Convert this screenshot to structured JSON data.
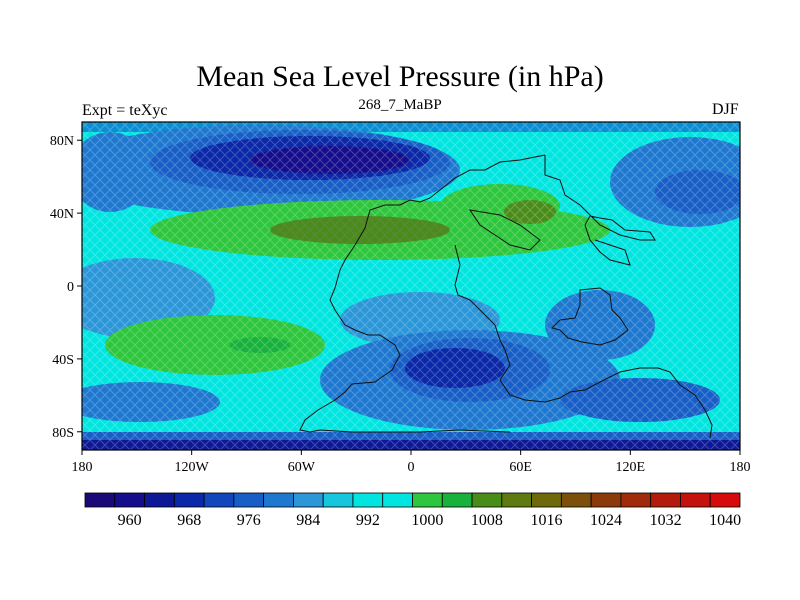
{
  "title": "Mean Sea Level Pressure (in hPa)",
  "subtitle": "268_7_MaBP",
  "left_label": "Expt = teXyc",
  "right_label": "DJF",
  "map": {
    "type": "filled-contour",
    "projection": "cylindrical-equidistant",
    "lon_range": [
      -180,
      180
    ],
    "lat_range": [
      -90,
      90
    ],
    "lon_ticks": [
      {
        "value": -180,
        "label": "180"
      },
      {
        "value": -120,
        "label": "120W"
      },
      {
        "value": -60,
        "label": "60W"
      },
      {
        "value": 0,
        "label": "0"
      },
      {
        "value": 60,
        "label": "60E"
      },
      {
        "value": 120,
        "label": "120E"
      },
      {
        "value": 180,
        "label": "180"
      }
    ],
    "lat_ticks": [
      {
        "value": 80,
        "label": "80N"
      },
      {
        "value": 40,
        "label": "40N"
      },
      {
        "value": 0,
        "label": "0"
      },
      {
        "value": -40,
        "label": "40S"
      },
      {
        "value": -80,
        "label": "80S"
      }
    ],
    "background_color": "#00e5e0"
  },
  "colorbar": {
    "colors": [
      "#1a0a78",
      "#160d8c",
      "#0d1896",
      "#0a28a8",
      "#1146bc",
      "#175ec6",
      "#1e78d0",
      "#2b96d8",
      "#15c6dc",
      "#00e5e0",
      "#00e5e0",
      "#2ec63c",
      "#17b13c",
      "#4a8c1a",
      "#5e7a10",
      "#6e6a0c",
      "#7c500a",
      "#8c3a0a",
      "#a02a0a",
      "#b31c0a",
      "#c4120c",
      "#d60a0a"
    ],
    "labels": [
      "960",
      "968",
      "976",
      "984",
      "992",
      "1000",
      "1008",
      "1016",
      "1024",
      "1032",
      "1040"
    ]
  }
}
